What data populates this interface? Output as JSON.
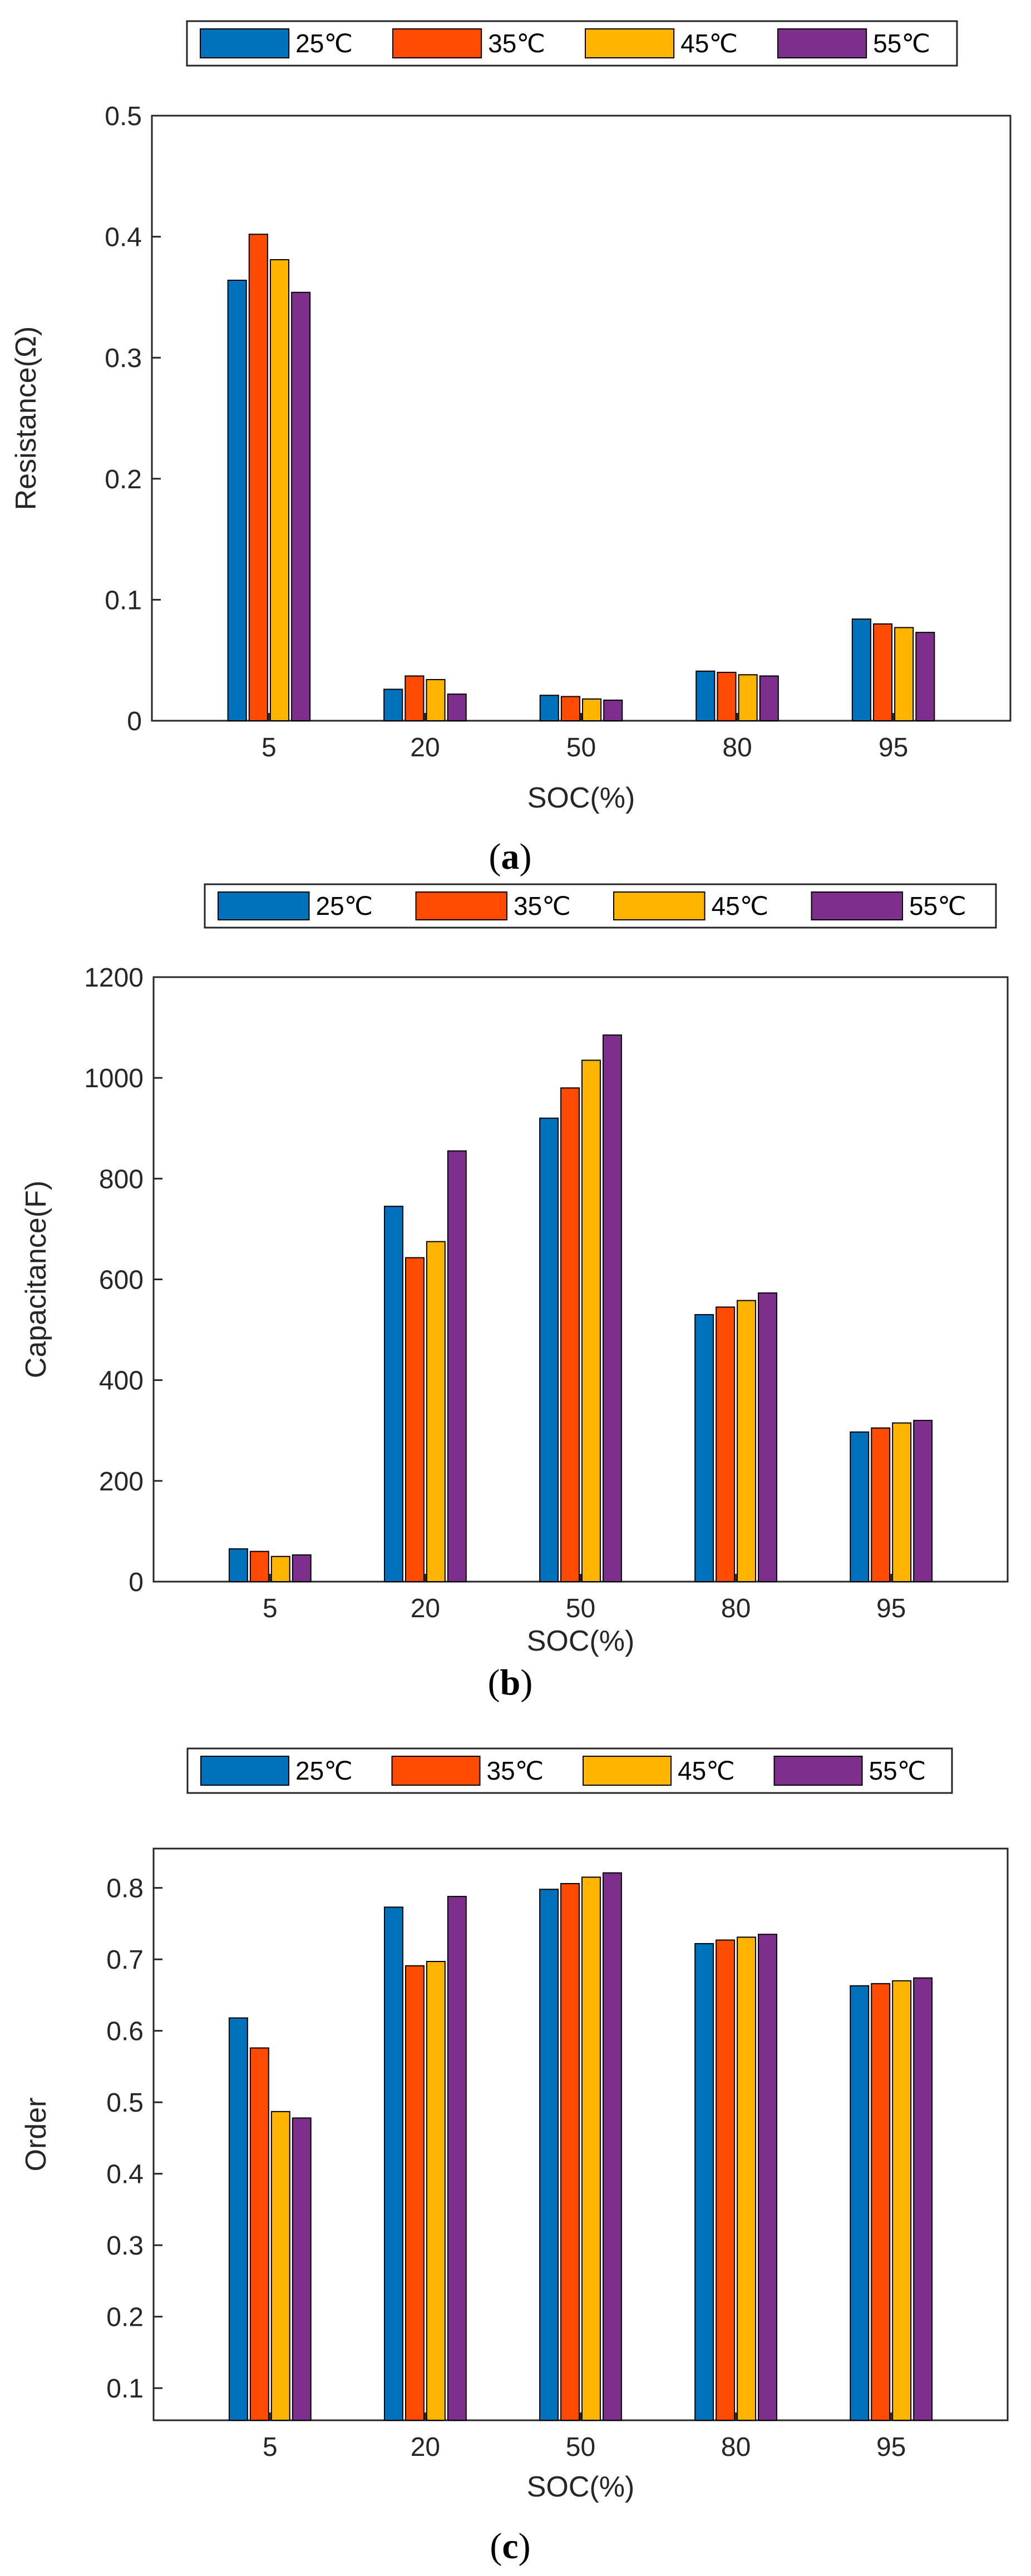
{
  "figure": {
    "captions": [
      "(a)",
      "(b)",
      "(c)"
    ]
  },
  "colors": {
    "series": [
      "#0072BD",
      "#FF4A00",
      "#FFB400",
      "#7E2F8E"
    ],
    "axis": "#262626"
  },
  "chart_data": [
    {
      "type": "bar",
      "panel": "a",
      "caption_letter": "a",
      "categories": [
        "5",
        "20",
        "50",
        "80",
        "95"
      ],
      "series": [
        {
          "name": "25℃",
          "values": [
            0.364,
            0.026,
            0.021,
            0.041,
            0.084
          ]
        },
        {
          "name": "35℃",
          "values": [
            0.402,
            0.037,
            0.02,
            0.04,
            0.08
          ]
        },
        {
          "name": "45℃",
          "values": [
            0.381,
            0.034,
            0.018,
            0.038,
            0.077
          ]
        },
        {
          "name": "55℃",
          "values": [
            0.354,
            0.022,
            0.017,
            0.037,
            0.073
          ]
        }
      ],
      "xlabel": "SOC(%)",
      "ylabel": "Resistance(Ω)",
      "ylim": [
        0,
        0.5
      ],
      "yticks": [
        0,
        0.1,
        0.2,
        0.3,
        0.4,
        0.5
      ],
      "ytick_labels": [
        "0",
        "0.1",
        "0.2",
        "0.3",
        "0.4",
        "0.5"
      ],
      "legend": "top, horizontal, outside",
      "grid": false
    },
    {
      "type": "bar",
      "panel": "b",
      "caption_letter": "b",
      "categories": [
        "5",
        "20",
        "50",
        "80",
        "95"
      ],
      "series": [
        {
          "name": "25℃",
          "values": [
            65,
            745,
            920,
            530,
            297
          ]
        },
        {
          "name": "35℃",
          "values": [
            60,
            643,
            980,
            545,
            305
          ]
        },
        {
          "name": "45℃",
          "values": [
            50,
            675,
            1035,
            558,
            315
          ]
        },
        {
          "name": "55℃",
          "values": [
            53,
            855,
            1085,
            573,
            320
          ]
        }
      ],
      "xlabel": "SOC(%)",
      "ylabel": "Capacitance(F)",
      "ylim": [
        0,
        1200
      ],
      "yticks": [
        0,
        200,
        400,
        600,
        800,
        1000,
        1200
      ],
      "ytick_labels": [
        "0",
        "200",
        "400",
        "600",
        "800",
        "1000",
        "1200"
      ],
      "legend": "top, horizontal, outside",
      "grid": false
    },
    {
      "type": "bar",
      "panel": "c",
      "caption_letter": "c",
      "categories": [
        "5",
        "20",
        "50",
        "80",
        "95"
      ],
      "series": [
        {
          "name": "25℃",
          "values": [
            0.618,
            0.773,
            0.798,
            0.722,
            0.663
          ]
        },
        {
          "name": "35℃",
          "values": [
            0.576,
            0.691,
            0.806,
            0.727,
            0.666
          ]
        },
        {
          "name": "45℃",
          "values": [
            0.487,
            0.697,
            0.815,
            0.731,
            0.67
          ]
        },
        {
          "name": "55℃",
          "values": [
            0.478,
            0.788,
            0.821,
            0.735,
            0.674
          ]
        }
      ],
      "xlabel": "SOC(%)",
      "ylabel": "Order",
      "ylim": [
        0.055,
        0.855
      ],
      "yticks": [
        0.1,
        0.2,
        0.3,
        0.4,
        0.5,
        0.6,
        0.7,
        0.8
      ],
      "ytick_labels": [
        "0.1",
        "0.2",
        "0.3",
        "0.4",
        "0.5",
        "0.6",
        "0.7",
        "0.8"
      ],
      "legend": "top, horizontal, outside",
      "grid": false
    }
  ]
}
